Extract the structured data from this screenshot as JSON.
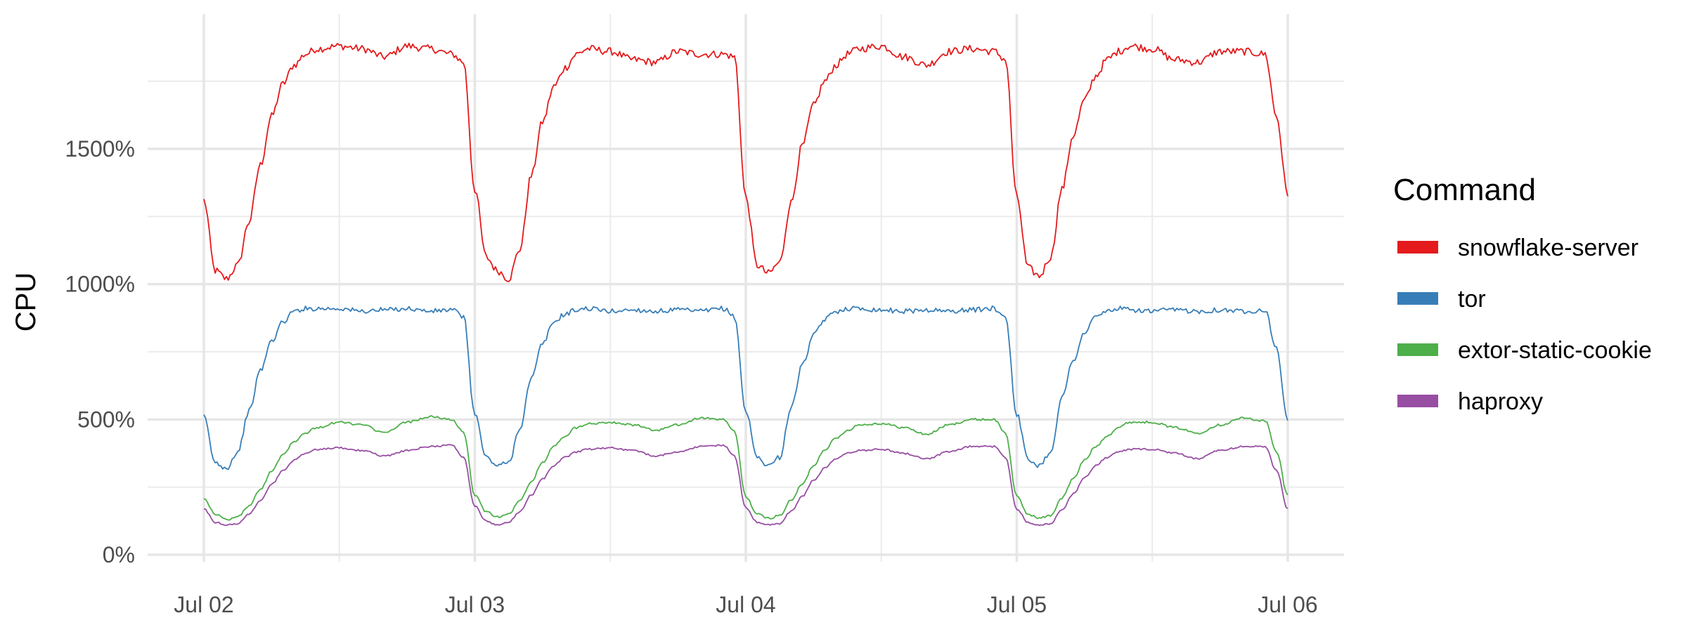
{
  "chart_data": {
    "type": "line",
    "ylabel": "CPU",
    "y_unit": "%",
    "ylim": [
      0,
      1950
    ],
    "y_ticks": [
      0,
      500,
      1000,
      1500
    ],
    "y_tick_labels": [
      "0%",
      "500%",
      "1000%",
      "1500%"
    ],
    "x_ticks": [
      "2023-07-02",
      "2023-07-03",
      "2023-07-04",
      "2023-07-05",
      "2023-07-06"
    ],
    "x_tick_labels": [
      "Jul 02",
      "Jul 03",
      "Jul 04",
      "Jul 05",
      "Jul 06"
    ],
    "xlim": [
      "2023-07-01T23:00",
      "2023-07-06T02:00"
    ],
    "grid": true,
    "legend": {
      "title": "Command",
      "position": "right"
    },
    "series": [
      {
        "name": "snowflake-server",
        "color": "#e41a1c",
        "x": [
          "2023-07-02T00:00",
          "2023-07-02T01:00",
          "2023-07-02T02:00",
          "2023-07-02T03:00",
          "2023-07-02T04:00",
          "2023-07-02T05:00",
          "2023-07-02T06:00",
          "2023-07-02T07:00",
          "2023-07-02T08:00",
          "2023-07-02T09:00",
          "2023-07-02T10:00",
          "2023-07-02T12:00",
          "2023-07-02T14:00",
          "2023-07-02T16:00",
          "2023-07-02T18:00",
          "2023-07-02T20:00",
          "2023-07-02T22:00",
          "2023-07-02T23:00",
          "2023-07-03T00:00",
          "2023-07-03T01:00",
          "2023-07-03T02:00",
          "2023-07-03T03:00",
          "2023-07-03T04:00",
          "2023-07-03T05:00",
          "2023-07-03T06:00",
          "2023-07-03T07:00",
          "2023-07-03T08:00",
          "2023-07-03T09:00",
          "2023-07-03T10:00",
          "2023-07-03T12:00",
          "2023-07-03T14:00",
          "2023-07-03T16:00",
          "2023-07-03T18:00",
          "2023-07-03T20:00",
          "2023-07-03T22:00",
          "2023-07-03T23:00",
          "2023-07-04T00:00",
          "2023-07-04T01:00",
          "2023-07-04T02:00",
          "2023-07-04T03:00",
          "2023-07-04T04:00",
          "2023-07-04T05:00",
          "2023-07-04T06:00",
          "2023-07-04T07:00",
          "2023-07-04T08:00",
          "2023-07-04T09:00",
          "2023-07-04T10:00",
          "2023-07-04T12:00",
          "2023-07-04T14:00",
          "2023-07-04T16:00",
          "2023-07-04T18:00",
          "2023-07-04T20:00",
          "2023-07-04T22:00",
          "2023-07-04T23:00",
          "2023-07-05T00:00",
          "2023-07-05T01:00",
          "2023-07-05T02:00",
          "2023-07-05T03:00",
          "2023-07-05T04:00",
          "2023-07-05T05:00",
          "2023-07-05T06:00",
          "2023-07-05T07:00",
          "2023-07-05T08:00",
          "2023-07-05T09:00",
          "2023-07-05T10:00",
          "2023-07-05T12:00",
          "2023-07-05T14:00",
          "2023-07-05T16:00",
          "2023-07-05T18:00",
          "2023-07-05T20:00",
          "2023-07-05T22:00",
          "2023-07-05T23:00",
          "2023-07-06T00:00"
        ],
        "values": [
          1310,
          1050,
          1020,
          1070,
          1230,
          1440,
          1620,
          1740,
          1810,
          1850,
          1870,
          1880,
          1870,
          1840,
          1880,
          1870,
          1850,
          1820,
          1350,
          1100,
          1050,
          1020,
          1130,
          1400,
          1600,
          1730,
          1800,
          1850,
          1870,
          1860,
          1830,
          1820,
          1860,
          1850,
          1850,
          1840,
          1320,
          1070,
          1040,
          1080,
          1300,
          1510,
          1660,
          1750,
          1810,
          1850,
          1870,
          1880,
          1840,
          1810,
          1860,
          1870,
          1860,
          1830,
          1320,
          1060,
          1030,
          1100,
          1350,
          1550,
          1680,
          1770,
          1830,
          1860,
          1880,
          1870,
          1830,
          1820,
          1860,
          1860,
          1850,
          1620,
          1330
        ]
      },
      {
        "name": "tor",
        "color": "#377eb8",
        "x": [
          "2023-07-02T00:00",
          "2023-07-02T01:00",
          "2023-07-02T02:00",
          "2023-07-02T03:00",
          "2023-07-02T04:00",
          "2023-07-02T05:00",
          "2023-07-02T06:00",
          "2023-07-02T07:00",
          "2023-07-02T08:00",
          "2023-07-02T09:00",
          "2023-07-02T10:00",
          "2023-07-02T12:00",
          "2023-07-02T14:00",
          "2023-07-02T16:00",
          "2023-07-02T18:00",
          "2023-07-02T20:00",
          "2023-07-02T22:00",
          "2023-07-02T23:00",
          "2023-07-03T00:00",
          "2023-07-03T01:00",
          "2023-07-03T02:00",
          "2023-07-03T03:00",
          "2023-07-03T04:00",
          "2023-07-03T05:00",
          "2023-07-03T06:00",
          "2023-07-03T07:00",
          "2023-07-03T08:00",
          "2023-07-03T09:00",
          "2023-07-03T10:00",
          "2023-07-03T12:00",
          "2023-07-03T14:00",
          "2023-07-03T16:00",
          "2023-07-03T18:00",
          "2023-07-03T20:00",
          "2023-07-03T22:00",
          "2023-07-03T23:00",
          "2023-07-04T00:00",
          "2023-07-04T01:00",
          "2023-07-04T02:00",
          "2023-07-04T03:00",
          "2023-07-04T04:00",
          "2023-07-04T05:00",
          "2023-07-04T06:00",
          "2023-07-04T07:00",
          "2023-07-04T08:00",
          "2023-07-04T09:00",
          "2023-07-04T10:00",
          "2023-07-04T12:00",
          "2023-07-04T14:00",
          "2023-07-04T16:00",
          "2023-07-04T18:00",
          "2023-07-04T20:00",
          "2023-07-04T22:00",
          "2023-07-04T23:00",
          "2023-07-05T00:00",
          "2023-07-05T01:00",
          "2023-07-05T02:00",
          "2023-07-05T03:00",
          "2023-07-05T04:00",
          "2023-07-05T05:00",
          "2023-07-05T06:00",
          "2023-07-05T07:00",
          "2023-07-05T08:00",
          "2023-07-05T09:00",
          "2023-07-05T10:00",
          "2023-07-05T12:00",
          "2023-07-05T14:00",
          "2023-07-05T16:00",
          "2023-07-05T18:00",
          "2023-07-05T20:00",
          "2023-07-05T22:00",
          "2023-07-05T23:00",
          "2023-07-06T00:00"
        ],
        "values": [
          510,
          340,
          320,
          380,
          530,
          680,
          790,
          860,
          900,
          910,
          910,
          910,
          900,
          905,
          910,
          900,
          905,
          880,
          520,
          360,
          330,
          340,
          470,
          650,
          780,
          860,
          890,
          905,
          910,
          900,
          905,
          900,
          905,
          900,
          910,
          880,
          530,
          360,
          330,
          360,
          540,
          700,
          810,
          870,
          900,
          910,
          910,
          905,
          900,
          905,
          900,
          905,
          910,
          880,
          520,
          350,
          330,
          380,
          580,
          720,
          820,
          880,
          900,
          910,
          905,
          900,
          905,
          900,
          905,
          900,
          905,
          760,
          500
        ]
      },
      {
        "name": "extor-static-cookie",
        "color": "#4daf4a",
        "x": [
          "2023-07-02T00:00",
          "2023-07-02T01:00",
          "2023-07-02T02:00",
          "2023-07-02T03:00",
          "2023-07-02T04:00",
          "2023-07-02T05:00",
          "2023-07-02T06:00",
          "2023-07-02T07:00",
          "2023-07-02T08:00",
          "2023-07-02T09:00",
          "2023-07-02T10:00",
          "2023-07-02T12:00",
          "2023-07-02T14:00",
          "2023-07-02T16:00",
          "2023-07-02T18:00",
          "2023-07-02T20:00",
          "2023-07-02T22:00",
          "2023-07-02T23:00",
          "2023-07-03T00:00",
          "2023-07-03T01:00",
          "2023-07-03T02:00",
          "2023-07-03T03:00",
          "2023-07-03T04:00",
          "2023-07-03T05:00",
          "2023-07-03T06:00",
          "2023-07-03T07:00",
          "2023-07-03T08:00",
          "2023-07-03T09:00",
          "2023-07-03T10:00",
          "2023-07-03T12:00",
          "2023-07-03T14:00",
          "2023-07-03T16:00",
          "2023-07-03T18:00",
          "2023-07-03T20:00",
          "2023-07-03T22:00",
          "2023-07-03T23:00",
          "2023-07-04T00:00",
          "2023-07-04T01:00",
          "2023-07-04T02:00",
          "2023-07-04T03:00",
          "2023-07-04T04:00",
          "2023-07-04T05:00",
          "2023-07-04T06:00",
          "2023-07-04T07:00",
          "2023-07-04T08:00",
          "2023-07-04T09:00",
          "2023-07-04T10:00",
          "2023-07-04T12:00",
          "2023-07-04T14:00",
          "2023-07-04T16:00",
          "2023-07-04T18:00",
          "2023-07-04T20:00",
          "2023-07-04T22:00",
          "2023-07-04T23:00",
          "2023-07-05T00:00",
          "2023-07-05T01:00",
          "2023-07-05T02:00",
          "2023-07-05T03:00",
          "2023-07-05T04:00",
          "2023-07-05T05:00",
          "2023-07-05T06:00",
          "2023-07-05T07:00",
          "2023-07-05T08:00",
          "2023-07-05T09:00",
          "2023-07-05T10:00",
          "2023-07-05T12:00",
          "2023-07-05T14:00",
          "2023-07-05T16:00",
          "2023-07-05T18:00",
          "2023-07-05T20:00",
          "2023-07-05T22:00",
          "2023-07-05T23:00",
          "2023-07-06T00:00"
        ],
        "values": [
          210,
          150,
          130,
          140,
          180,
          240,
          310,
          370,
          420,
          450,
          470,
          490,
          480,
          450,
          490,
          510,
          500,
          450,
          220,
          160,
          140,
          150,
          200,
          270,
          340,
          400,
          440,
          470,
          485,
          490,
          480,
          460,
          480,
          505,
          500,
          455,
          215,
          150,
          135,
          145,
          200,
          260,
          330,
          390,
          430,
          460,
          480,
          485,
          470,
          445,
          480,
          500,
          500,
          450,
          215,
          150,
          135,
          145,
          210,
          280,
          350,
          400,
          440,
          470,
          490,
          490,
          470,
          450,
          480,
          505,
          495,
          380,
          220
        ]
      },
      {
        "name": "haproxy",
        "color": "#984ea3",
        "x": [
          "2023-07-02T00:00",
          "2023-07-02T01:00",
          "2023-07-02T02:00",
          "2023-07-02T03:00",
          "2023-07-02T04:00",
          "2023-07-02T05:00",
          "2023-07-02T06:00",
          "2023-07-02T07:00",
          "2023-07-02T08:00",
          "2023-07-02T09:00",
          "2023-07-02T10:00",
          "2023-07-02T12:00",
          "2023-07-02T14:00",
          "2023-07-02T16:00",
          "2023-07-02T18:00",
          "2023-07-02T20:00",
          "2023-07-02T22:00",
          "2023-07-02T23:00",
          "2023-07-03T00:00",
          "2023-07-03T01:00",
          "2023-07-03T02:00",
          "2023-07-03T03:00",
          "2023-07-03T04:00",
          "2023-07-03T05:00",
          "2023-07-03T06:00",
          "2023-07-03T07:00",
          "2023-07-03T08:00",
          "2023-07-03T09:00",
          "2023-07-03T10:00",
          "2023-07-03T12:00",
          "2023-07-03T14:00",
          "2023-07-03T16:00",
          "2023-07-03T18:00",
          "2023-07-03T20:00",
          "2023-07-03T22:00",
          "2023-07-03T23:00",
          "2023-07-04T00:00",
          "2023-07-04T01:00",
          "2023-07-04T02:00",
          "2023-07-04T03:00",
          "2023-07-04T04:00",
          "2023-07-04T05:00",
          "2023-07-04T06:00",
          "2023-07-04T07:00",
          "2023-07-04T08:00",
          "2023-07-04T09:00",
          "2023-07-04T10:00",
          "2023-07-04T12:00",
          "2023-07-04T14:00",
          "2023-07-04T16:00",
          "2023-07-04T18:00",
          "2023-07-04T20:00",
          "2023-07-04T22:00",
          "2023-07-04T23:00",
          "2023-07-05T00:00",
          "2023-07-05T01:00",
          "2023-07-05T02:00",
          "2023-07-05T03:00",
          "2023-07-05T04:00",
          "2023-07-05T05:00",
          "2023-07-05T06:00",
          "2023-07-05T07:00",
          "2023-07-05T08:00",
          "2023-07-05T09:00",
          "2023-07-05T10:00",
          "2023-07-05T12:00",
          "2023-07-05T14:00",
          "2023-07-05T16:00",
          "2023-07-05T18:00",
          "2023-07-05T20:00",
          "2023-07-05T22:00",
          "2023-07-05T23:00",
          "2023-07-06T00:00"
        ],
        "values": [
          170,
          120,
          110,
          115,
          150,
          200,
          260,
          310,
          350,
          375,
          390,
          395,
          385,
          365,
          385,
          400,
          405,
          360,
          180,
          125,
          110,
          120,
          160,
          220,
          280,
          330,
          360,
          380,
          390,
          395,
          385,
          365,
          380,
          400,
          405,
          365,
          175,
          120,
          110,
          115,
          160,
          215,
          275,
          320,
          355,
          375,
          385,
          390,
          375,
          355,
          380,
          400,
          400,
          360,
          170,
          120,
          110,
          115,
          165,
          225,
          285,
          330,
          360,
          380,
          390,
          390,
          375,
          355,
          385,
          400,
          400,
          310,
          170
        ]
      }
    ]
  }
}
